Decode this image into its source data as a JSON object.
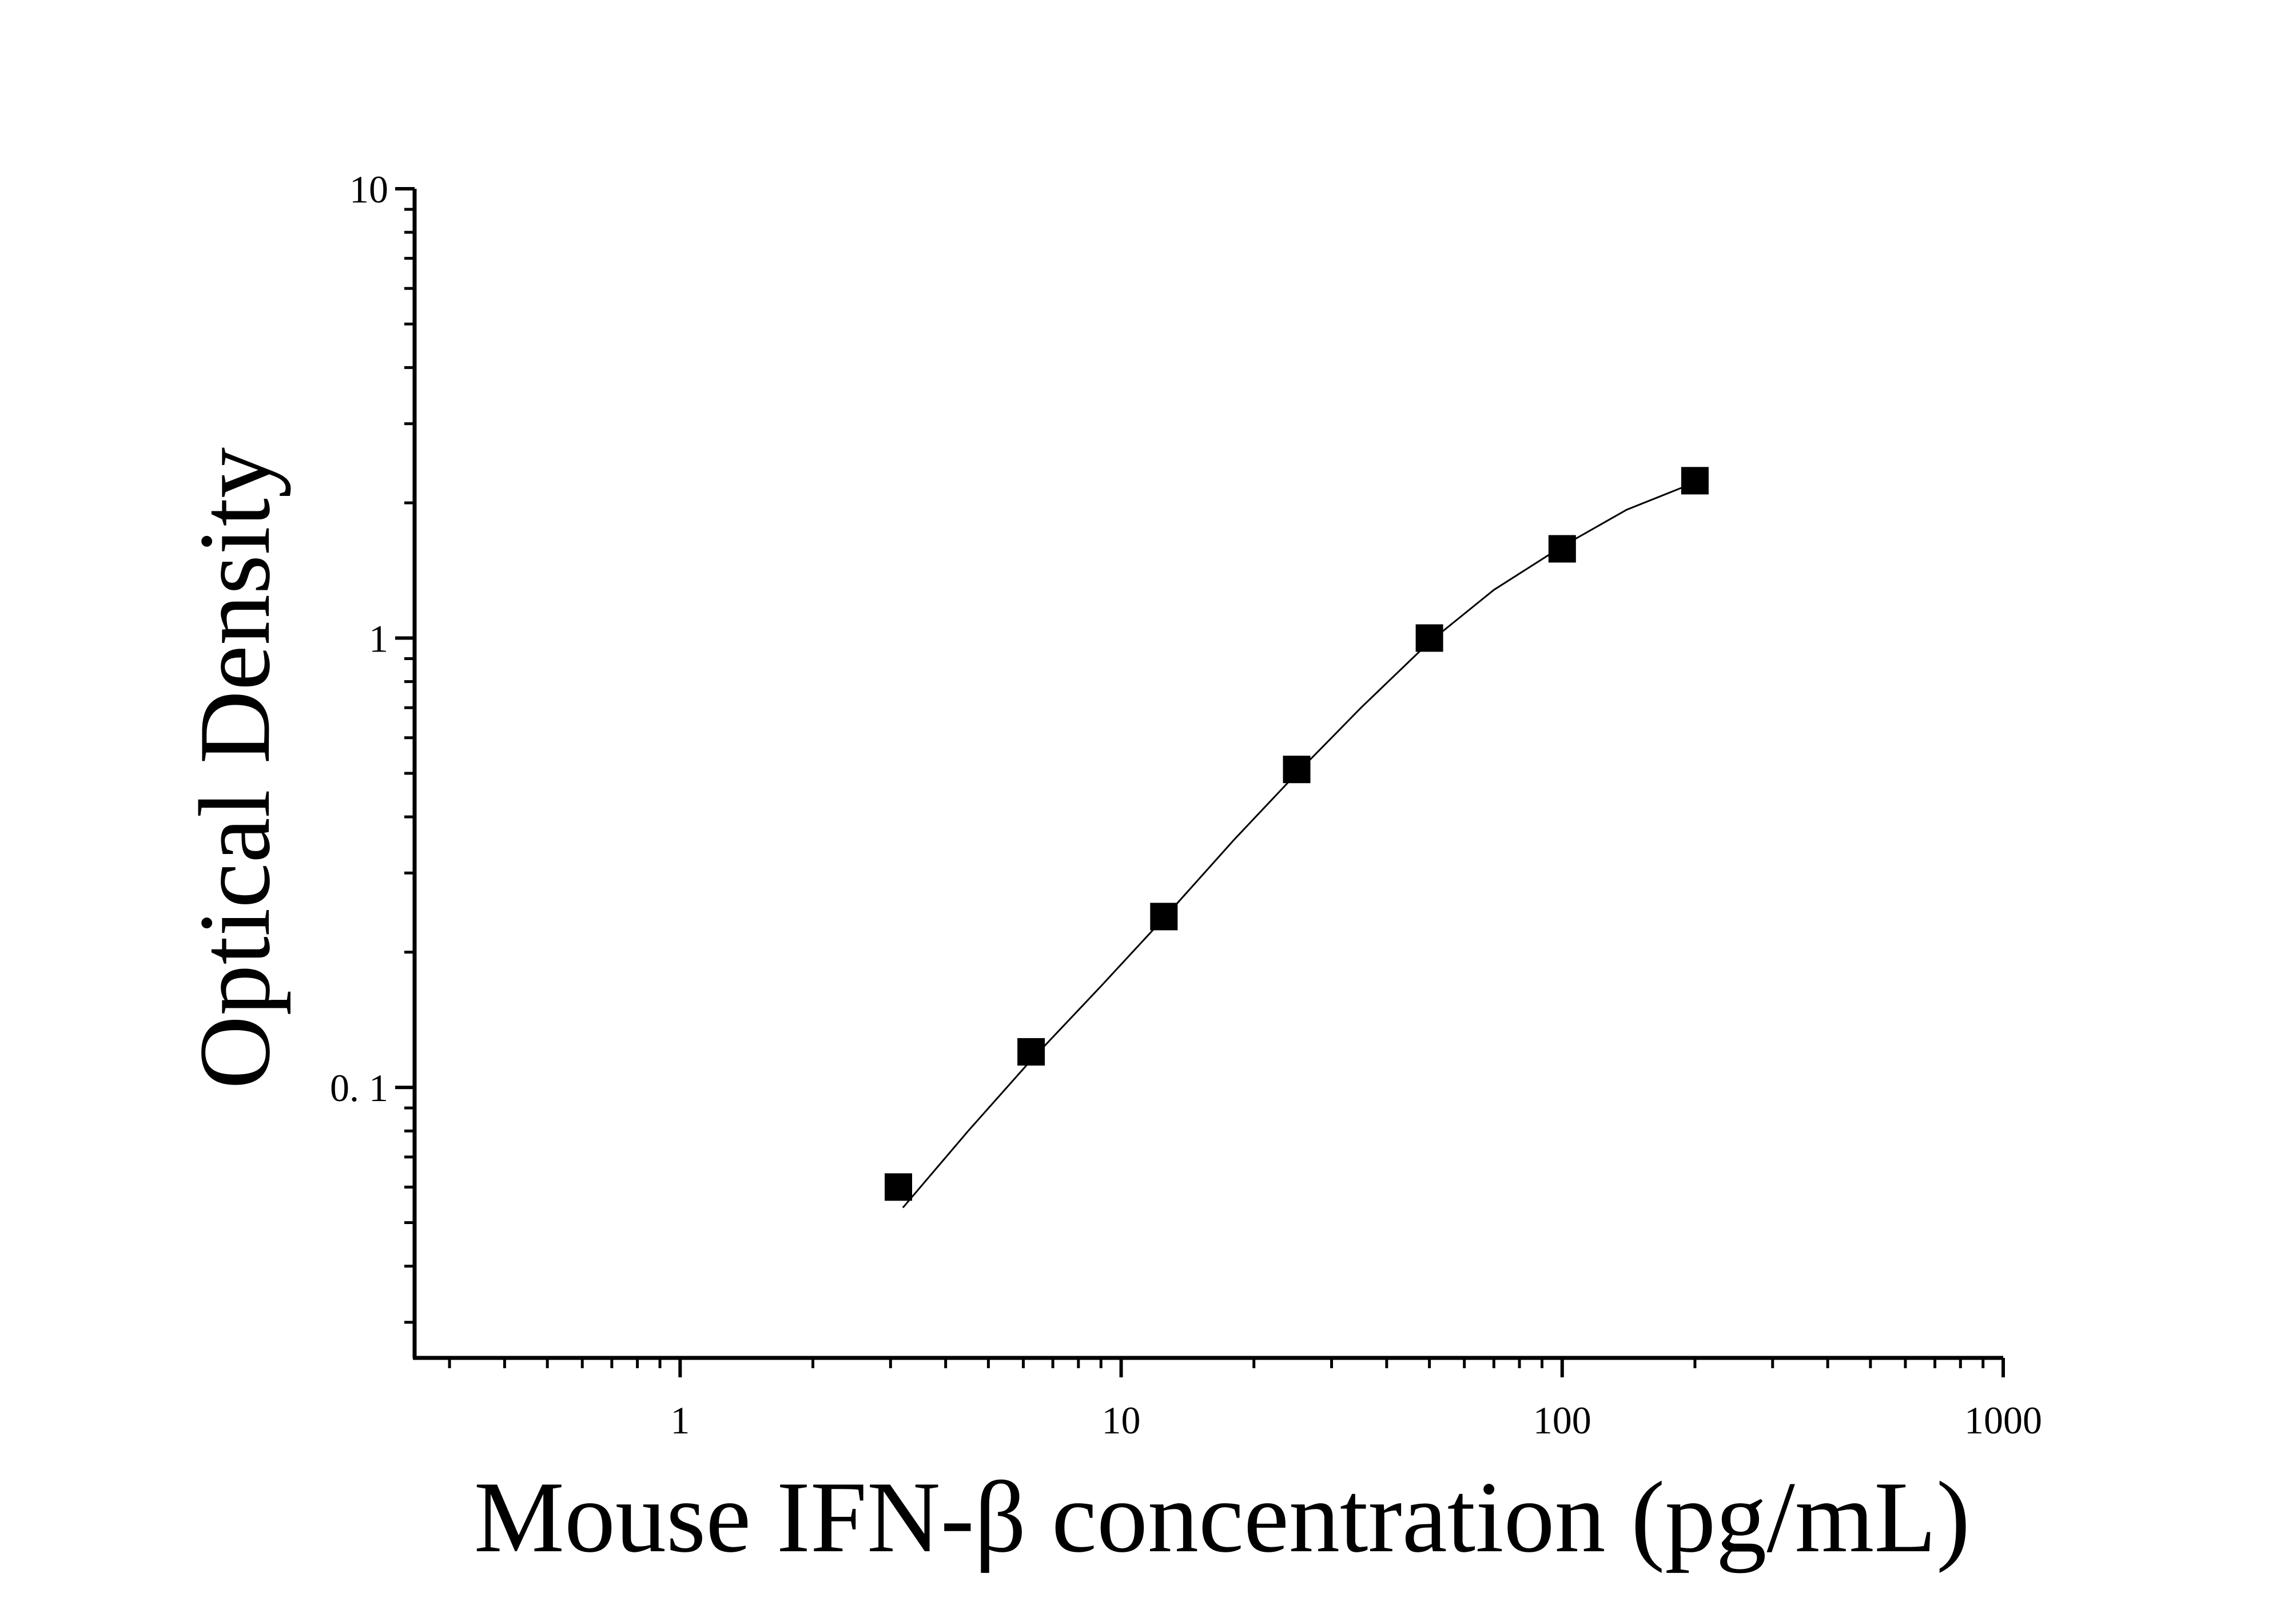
{
  "chart_data": {
    "type": "scatter",
    "title": "",
    "xlabel": "Mouse IFN-β concentration (pg/mL)",
    "ylabel": "Optical Density",
    "x_scale": "log",
    "y_scale": "log",
    "xlim": [
      0.25,
      1000
    ],
    "ylim": [
      0.025,
      10
    ],
    "x_ticks": [
      {
        "value": 1,
        "label": "1"
      },
      {
        "value": 10,
        "label": "10"
      },
      {
        "value": 100,
        "label": "100"
      },
      {
        "value": 1000,
        "label": "1000"
      }
    ],
    "y_ticks": [
      {
        "value": 0.1,
        "label": "0. 1"
      },
      {
        "value": 1,
        "label": "1"
      },
      {
        "value": 10,
        "label": "10"
      }
    ],
    "grid": false,
    "legend": "none",
    "series": [
      {
        "marker": "square",
        "color": "#000000",
        "points": [
          {
            "x": 3.125,
            "y": 0.06
          },
          {
            "x": 6.25,
            "y": 0.12
          },
          {
            "x": 12.5,
            "y": 0.24
          },
          {
            "x": 25,
            "y": 0.51
          },
          {
            "x": 50,
            "y": 1.0
          },
          {
            "x": 100,
            "y": 1.58
          },
          {
            "x": 200,
            "y": 2.24
          }
        ]
      }
    ],
    "fit_curve": {
      "color": "#000000",
      "points": [
        {
          "x": 3.2,
          "y": 0.054
        },
        {
          "x": 4.5,
          "y": 0.08
        },
        {
          "x": 6.25,
          "y": 0.115
        },
        {
          "x": 9,
          "y": 0.168
        },
        {
          "x": 12.5,
          "y": 0.238
        },
        {
          "x": 18,
          "y": 0.355
        },
        {
          "x": 25,
          "y": 0.5
        },
        {
          "x": 35,
          "y": 0.7
        },
        {
          "x": 50,
          "y": 0.98
        },
        {
          "x": 70,
          "y": 1.28
        },
        {
          "x": 100,
          "y": 1.6
        },
        {
          "x": 140,
          "y": 1.93
        },
        {
          "x": 200,
          "y": 2.22
        }
      ]
    }
  }
}
